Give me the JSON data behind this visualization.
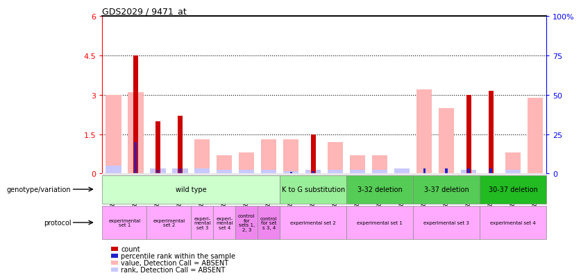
{
  "title": "GDS2029 / 9471_at",
  "samples": [
    "GSM86746",
    "GSM86747",
    "GSM86752",
    "GSM86753",
    "GSM86758",
    "GSM86764",
    "GSM86748",
    "GSM86759",
    "GSM86755",
    "GSM86756",
    "GSM86757",
    "GSM86749",
    "GSM86750",
    "GSM86751",
    "GSM86761",
    "GSM86762",
    "GSM86763",
    "GSM86767",
    "GSM86768",
    "GSM86769"
  ],
  "count_values": [
    0,
    4.5,
    2.0,
    2.2,
    0,
    0,
    0,
    0,
    0,
    1.5,
    0,
    0,
    0,
    0,
    0,
    0,
    3.0,
    3.15,
    0,
    0
  ],
  "percentile_values": [
    0,
    1.2,
    0.15,
    0.2,
    0,
    0,
    0,
    0,
    0.07,
    0.1,
    0,
    0,
    0,
    0,
    0.2,
    0.2,
    0.2,
    0.2,
    0,
    0
  ],
  "absent_value_values": [
    3.0,
    3.1,
    0,
    0,
    1.3,
    0.7,
    0.8,
    1.3,
    1.3,
    0,
    1.2,
    0.7,
    0.7,
    0,
    3.2,
    2.5,
    0,
    0,
    0.8,
    2.9
  ],
  "absent_rank_values": [
    0.3,
    0,
    0.2,
    0.2,
    0.2,
    0.15,
    0.15,
    0.15,
    0.1,
    0.15,
    0.15,
    0.15,
    0.15,
    0.2,
    0,
    0,
    0.15,
    0,
    0.15,
    0
  ],
  "ylim_left": [
    0,
    6
  ],
  "ylim_right": [
    0,
    100
  ],
  "yticks_left": [
    0,
    1.5,
    3.0,
    4.5,
    6.0
  ],
  "yticks_right": [
    0,
    25,
    50,
    75,
    100
  ],
  "ytick_labels_left": [
    "0",
    "1.5",
    "3",
    "4.5",
    "6"
  ],
  "ytick_labels_right": [
    "0",
    "25",
    "50",
    "75",
    "100%"
  ],
  "color_count": "#cc0000",
  "color_percentile": "#2222cc",
  "color_absent_value": "#ffb6b6",
  "color_absent_rank": "#c8c8ff",
  "genotype_groups": [
    {
      "label": "wild type",
      "start": 0,
      "end": 8,
      "color": "#ccffcc"
    },
    {
      "label": "K to G substitution",
      "start": 8,
      "end": 11,
      "color": "#99ee99"
    },
    {
      "label": "3-32 deletion",
      "start": 11,
      "end": 14,
      "color": "#55cc55"
    },
    {
      "label": "3-37 deletion",
      "start": 14,
      "end": 17,
      "color": "#55cc55"
    },
    {
      "label": "30-37 deletion",
      "start": 17,
      "end": 20,
      "color": "#22bb22"
    }
  ],
  "protocol_groups": [
    {
      "label": "experimental\nset 1",
      "start": 0,
      "end": 2,
      "color": "#ffaaff"
    },
    {
      "label": "experimental\nset 2",
      "start": 2,
      "end": 4,
      "color": "#ffaaff"
    },
    {
      "label": "experi-\nmental\nset 3",
      "start": 4,
      "end": 5,
      "color": "#ffaaff"
    },
    {
      "label": "experi-\nmental\nset 4",
      "start": 5,
      "end": 6,
      "color": "#ffaaff"
    },
    {
      "label": "control\nfor\nsets 1,\n2, 3",
      "start": 6,
      "end": 7,
      "color": "#ee88ee"
    },
    {
      "label": "control\nfor set\ns 3, 4",
      "start": 7,
      "end": 8,
      "color": "#ee88ee"
    },
    {
      "label": "experimental set 2",
      "start": 8,
      "end": 11,
      "color": "#ffaaff"
    },
    {
      "label": "experimental set 1",
      "start": 11,
      "end": 14,
      "color": "#ffaaff"
    },
    {
      "label": "experimental set 3",
      "start": 14,
      "end": 17,
      "color": "#ffaaff"
    },
    {
      "label": "experimental set 4",
      "start": 17,
      "end": 20,
      "color": "#ffaaff"
    }
  ],
  "background_color": "#ffffff",
  "xaxis_bg": "#e8e8e8"
}
